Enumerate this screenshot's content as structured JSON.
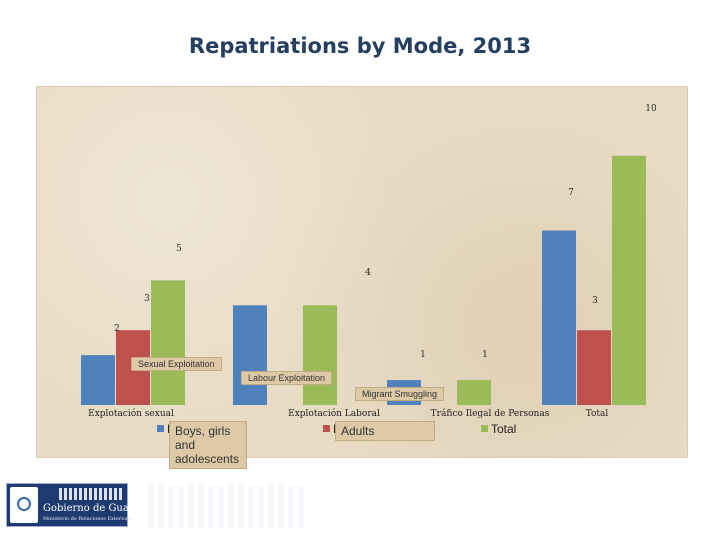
{
  "chart_data": {
    "type": "bar",
    "title": "Repatriations by Mode, 2013",
    "categories": [
      "Explotación sexual",
      "Explotación Laboral",
      "Tráfico Ilegal de Personas",
      "Total"
    ],
    "series": [
      {
        "name": "Boys, girls and adolescents",
        "values": [
          2,
          4,
          1,
          7
        ],
        "color": "#4f81bd"
      },
      {
        "name": "Adults",
        "values": [
          3,
          0,
          0,
          3
        ],
        "color": "#c0504d"
      },
      {
        "name": "Total",
        "values": [
          5,
          4,
          1,
          10
        ],
        "color": "#9bbb59"
      }
    ],
    "data_labels": [
      {
        "text": "2",
        "value": 2
      },
      {
        "text": "3",
        "value": 3
      },
      {
        "text": "5",
        "value": 5
      },
      {
        "text": "4",
        "value": 4
      },
      {
        "text": "1",
        "value": 1
      },
      {
        "text": "1",
        "value": 1
      },
      {
        "text": "7",
        "value": 7
      },
      {
        "text": "3",
        "value": 3
      },
      {
        "text": "10",
        "value": 10
      }
    ],
    "ylim": [
      0,
      11
    ],
    "legend_position": "bottom",
    "legend_marker_hidden_text": "E",
    "overlay_translations": [
      "Sexual Exploitation",
      "Labour Exploitation",
      "Migrant Smuggling"
    ],
    "grid": false
  },
  "footer": {
    "logo_name": "Gobierno de Guatemala",
    "logo_sub": "Ministerio de Relaciones Exteriores"
  }
}
